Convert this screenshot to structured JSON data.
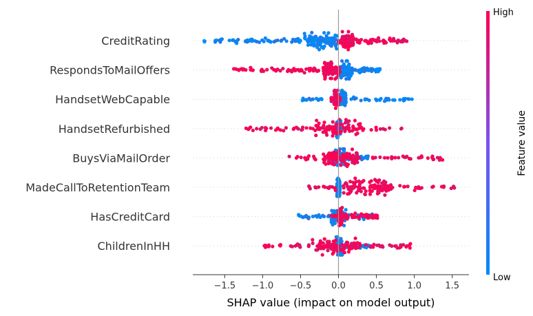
{
  "chart_data": {
    "type": "scatter",
    "subtype": "shap-beeswarm",
    "title": "",
    "xlabel": "SHAP value (impact on model output)",
    "xlim": [
      -1.92,
      1.72
    ],
    "xticks": [
      -1.5,
      -1.0,
      -0.5,
      0.0,
      0.5,
      1.0,
      1.5
    ],
    "xtick_labels": [
      "−1.5",
      "−1.0",
      "−0.5",
      "0.0",
      "0.5",
      "1.0",
      "1.5"
    ],
    "colorbar": {
      "label": "Feature value",
      "high_label": "High",
      "low_label": "Low",
      "high_color": "#ff0052",
      "low_color": "#008bfa"
    },
    "grid": false,
    "features": [
      {
        "name": "CreditRating",
        "low_range": [
          -1.78,
          0.02
        ],
        "high_range": [
          0.0,
          0.92
        ],
        "low_core": [
          -0.45,
          0.0
        ],
        "high_core": [
          0.05,
          0.2
        ],
        "n": 170
      },
      {
        "name": "RespondsToMailOffers",
        "low_range": [
          -0.05,
          0.55
        ],
        "high_range": [
          -1.38,
          0.02
        ],
        "low_core": [
          0.0,
          0.18
        ],
        "high_core": [
          -0.2,
          0.0
        ],
        "n": 150
      },
      {
        "name": "HandsetWebCapable",
        "low_range": [
          -0.5,
          0.98
        ],
        "high_range": [
          -0.1,
          0.02
        ],
        "low_core": [
          0.0,
          0.1
        ],
        "high_core": [
          -0.06,
          0.0
        ],
        "n": 140
      },
      {
        "name": "HandsetRefurbished",
        "low_range": [
          -0.05,
          0.05
        ],
        "high_range": [
          -1.22,
          0.95
        ],
        "low_core": [
          -0.03,
          0.03
        ],
        "high_core": [
          -0.3,
          0.3
        ],
        "n": 130
      },
      {
        "name": "BuysViaMailOrder",
        "low_range": [
          -0.1,
          0.4
        ],
        "high_range": [
          -0.65,
          1.38
        ],
        "low_core": [
          -0.05,
          0.08
        ],
        "high_core": [
          -0.2,
          0.25
        ],
        "n": 140
      },
      {
        "name": "MadeCallToRetentionTeam",
        "low_range": [
          -0.02,
          0.02
        ],
        "high_range": [
          -0.45,
          1.55
        ],
        "low_core": [
          -0.02,
          0.02
        ],
        "high_core": [
          0.05,
          0.7
        ],
        "n": 140
      },
      {
        "name": "HasCreditCard",
        "low_range": [
          -0.55,
          0.48
        ],
        "high_range": [
          -0.1,
          0.52
        ],
        "low_core": [
          -0.1,
          0.1
        ],
        "high_core": [
          0.0,
          0.05
        ],
        "n": 140
      },
      {
        "name": "ChildrenInHH",
        "low_range": [
          -0.1,
          0.4
        ],
        "high_range": [
          -1.0,
          0.96
        ],
        "low_core": [
          -0.03,
          0.05
        ],
        "high_core": [
          -0.35,
          0.3
        ],
        "n": 140
      }
    ]
  }
}
